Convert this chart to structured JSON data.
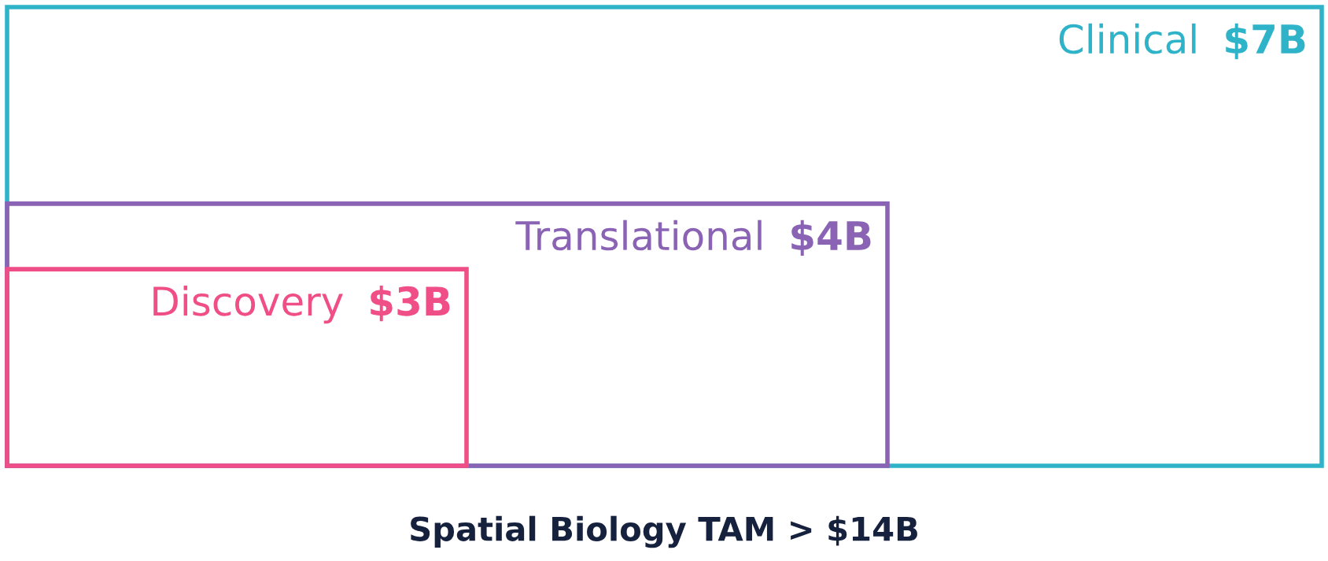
{
  "chart_data": {
    "type": "other",
    "title": "Spatial Biology TAM > $14B",
    "categories": [
      "Clinical",
      "Translational",
      "Discovery"
    ],
    "values": [
      7,
      4,
      3
    ],
    "value_labels": [
      "$7B",
      "$4B",
      "$3B"
    ],
    "colors": [
      "#2fb3c9",
      "#8a63b4",
      "#ef4f86"
    ]
  }
}
